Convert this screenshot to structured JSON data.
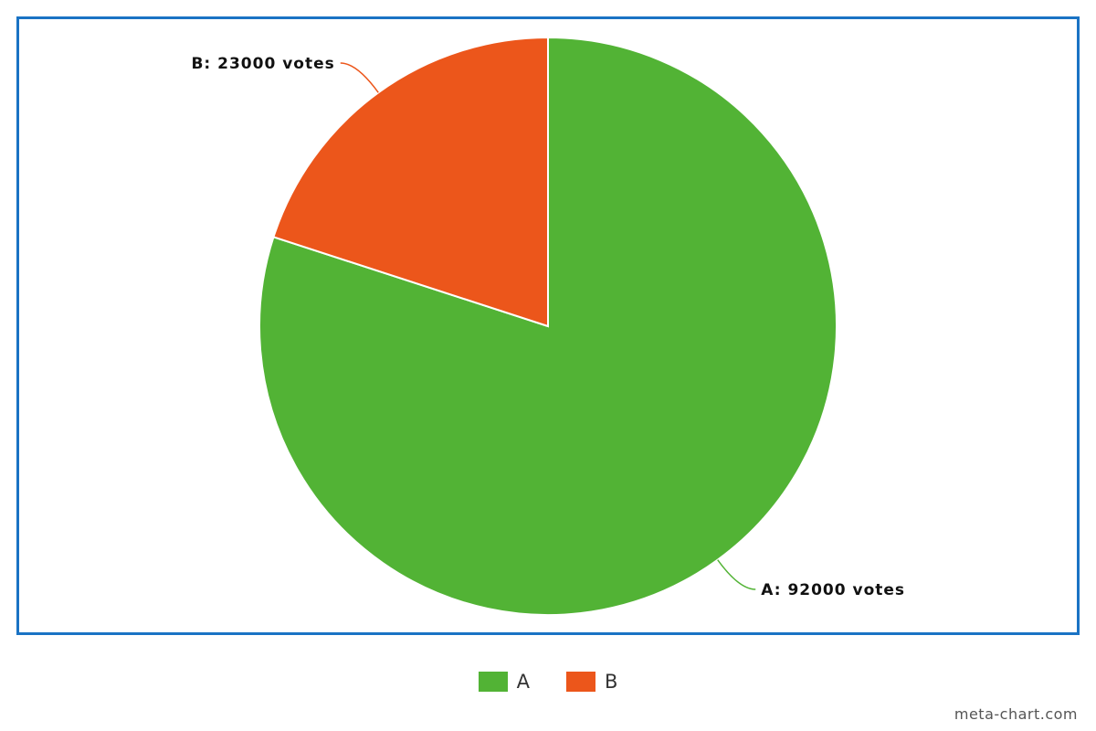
{
  "chart_data": {
    "type": "pie",
    "title": "",
    "slices": [
      {
        "label": "A",
        "value": 92000,
        "color": "#52b335",
        "data_label": "A: 92000 votes"
      },
      {
        "label": "B",
        "value": 23000,
        "color": "#ec561b",
        "data_label": "B: 23000 votes"
      }
    ],
    "legend": {
      "placement": "bottom-center",
      "items": [
        "A",
        "B"
      ]
    },
    "frame_color": "#1a73c4"
  },
  "legend": {
    "items": [
      {
        "label": "A",
        "color": "#52b335"
      },
      {
        "label": "B",
        "color": "#ec561b"
      }
    ]
  },
  "watermark": "meta-chart.com"
}
